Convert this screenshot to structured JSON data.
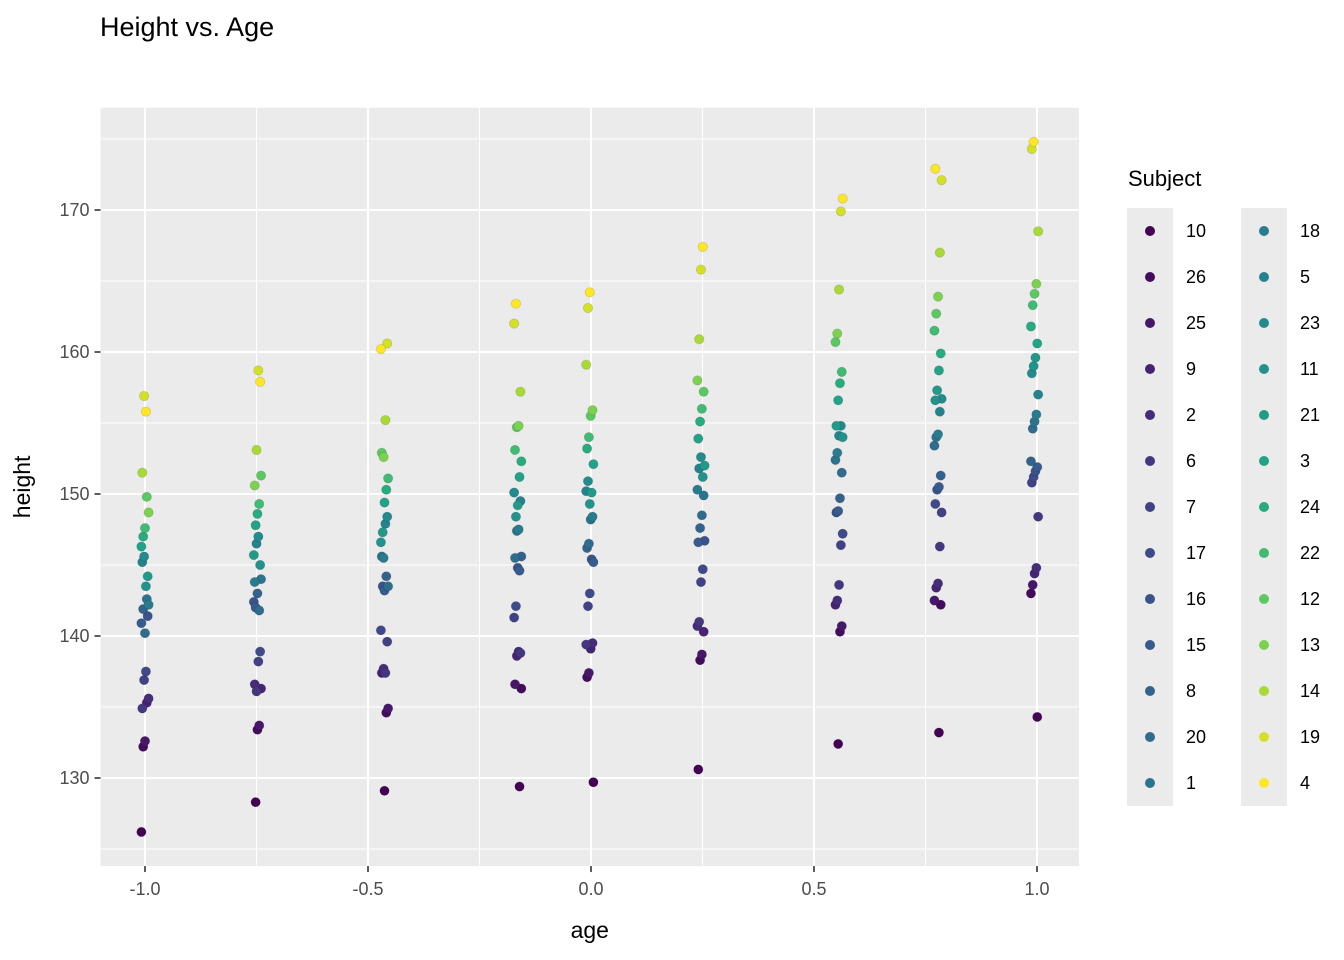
{
  "chart_data": {
    "type": "scatter",
    "title": "Height vs. Age",
    "xlabel": "age",
    "ylabel": "height",
    "xlim": [
      -1.0997,
      1.0942
    ],
    "ylim": [
      123.8,
      177.2
    ],
    "grid": "on",
    "panel_bg": "#EBEBEB",
    "grid_color": "#FFFFFF",
    "tick_label_color": "#4D4D4D",
    "tick_mark_color": "#333333",
    "xticks": {
      "values": [
        -1.0,
        -0.5,
        0.0,
        0.5,
        1.0
      ],
      "labels": [
        "-1.0",
        "-0.5",
        "0.0",
        "0.5",
        "1.0"
      ]
    },
    "yticks": {
      "values": [
        130,
        140,
        150,
        160,
        170
      ],
      "labels": [
        "130",
        "140",
        "150",
        "160",
        "170"
      ]
    },
    "x_minor": [
      -0.75,
      -0.25,
      0.25,
      0.75
    ],
    "y_minor": [
      125,
      135,
      145,
      155,
      165,
      175
    ],
    "ages": [
      -1.0,
      -0.7479,
      -0.463,
      -0.1643,
      -0.0027,
      0.2466,
      0.5562,
      0.7781,
      0.9945
    ],
    "series": [
      {
        "subject": "10",
        "color": "#440154",
        "heights": [
          126.2,
          128.3,
          129.1,
          129.4,
          129.7,
          130.6,
          132.4,
          133.2,
          134.3
        ]
      },
      {
        "subject": "26",
        "color": "#450C5E",
        "heights": [
          132.2,
          133.4,
          134.6,
          136.3,
          137.1,
          138.3,
          140.3,
          142.2,
          143.0
        ]
      },
      {
        "subject": "25",
        "color": "#471769",
        "heights": [
          132.6,
          133.7,
          134.9,
          136.6,
          137.4,
          138.7,
          140.7,
          142.5,
          143.6
        ]
      },
      {
        "subject": "9",
        "color": "#482373",
        "heights": [
          135.3,
          136.3,
          137.4,
          138.6,
          139.1,
          140.3,
          142.2,
          143.4,
          144.4
        ]
      },
      {
        "subject": "2",
        "color": "#462D7A",
        "heights": [
          135.6,
          136.6,
          137.7,
          138.9,
          139.5,
          140.7,
          142.5,
          143.7,
          144.8
        ]
      },
      {
        "subject": "6",
        "color": "#443780",
        "heights": [
          134.9,
          136.1,
          137.4,
          138.8,
          139.4,
          141.0,
          143.6,
          146.3,
          148.4
        ]
      },
      {
        "subject": "7",
        "color": "#414186",
        "heights": [
          136.9,
          138.2,
          139.6,
          141.3,
          142.1,
          143.8,
          146.4,
          148.7,
          150.8
        ]
      },
      {
        "subject": "17",
        "color": "#3E4A89",
        "heights": [
          137.5,
          138.9,
          140.4,
          142.1,
          143.0,
          144.7,
          147.2,
          149.3,
          151.2
        ]
      },
      {
        "subject": "16",
        "color": "#3A538A",
        "heights": [
          141.4,
          142.4,
          143.5,
          144.8,
          145.4,
          146.7,
          148.7,
          150.3,
          151.6
        ]
      },
      {
        "subject": "15",
        "color": "#365B8C",
        "heights": [
          140.9,
          142.0,
          143.2,
          144.6,
          145.2,
          146.6,
          148.8,
          150.5,
          151.9
        ]
      },
      {
        "subject": "8",
        "color": "#33638D",
        "heights": [
          141.9,
          143.0,
          144.2,
          145.6,
          146.2,
          147.6,
          149.7,
          151.3,
          152.3
        ]
      },
      {
        "subject": "20",
        "color": "#2F6C8E",
        "heights": [
          140.2,
          141.8,
          143.5,
          145.5,
          146.5,
          148.5,
          151.5,
          153.4,
          154.6
        ]
      },
      {
        "subject": "1",
        "color": "#2C748E",
        "heights": [
          142.6,
          144.0,
          145.6,
          147.4,
          148.2,
          149.9,
          152.4,
          154.0,
          155.1
        ]
      },
      {
        "subject": "18",
        "color": "#287C8E",
        "heights": [
          142.2,
          143.8,
          145.5,
          147.5,
          148.4,
          150.3,
          152.9,
          154.2,
          155.6
        ]
      },
      {
        "subject": "5",
        "color": "#25838D",
        "heights": [
          145.2,
          146.5,
          147.9,
          149.5,
          150.2,
          151.8,
          154.1,
          155.8,
          157.0
        ]
      },
      {
        "subject": "23",
        "color": "#238B8D",
        "heights": [
          145.6,
          147.0,
          148.4,
          150.1,
          150.9,
          152.6,
          154.8,
          156.7,
          158.5
        ]
      },
      {
        "subject": "11",
        "color": "#21938C",
        "heights": [
          143.5,
          145.0,
          146.6,
          148.4,
          149.3,
          151.2,
          154.0,
          156.6,
          159.0
        ]
      },
      {
        "subject": "21",
        "color": "#219A89",
        "heights": [
          144.2,
          145.7,
          147.3,
          149.2,
          150.1,
          152.0,
          154.8,
          157.3,
          159.6
        ]
      },
      {
        "subject": "3",
        "color": "#22A286",
        "heights": [
          146.3,
          147.8,
          149.4,
          151.2,
          152.1,
          153.9,
          156.6,
          158.7,
          160.6
        ]
      },
      {
        "subject": "24",
        "color": "#27AB81",
        "heights": [
          147.0,
          148.6,
          150.3,
          152.3,
          153.2,
          155.1,
          157.8,
          159.9,
          161.8
        ]
      },
      {
        "subject": "22",
        "color": "#40BB73",
        "heights": [
          147.6,
          149.3,
          151.1,
          153.1,
          154.0,
          156.0,
          158.6,
          161.5,
          163.3
        ]
      },
      {
        "subject": "12",
        "color": "#5CC862",
        "heights": [
          149.8,
          151.3,
          152.9,
          154.7,
          155.5,
          157.2,
          160.7,
          162.7,
          164.1
        ]
      },
      {
        "subject": "13",
        "color": "#7CD250",
        "heights": [
          148.7,
          150.6,
          152.6,
          154.8,
          155.9,
          158.0,
          161.3,
          163.9,
          164.8
        ]
      },
      {
        "subject": "14",
        "color": "#A7DA34",
        "heights": [
          151.5,
          153.1,
          155.2,
          157.2,
          159.1,
          160.9,
          164.4,
          167.0,
          168.5
        ]
      },
      {
        "subject": "19",
        "color": "#D2E126",
        "heights": [
          156.9,
          158.7,
          160.6,
          162.0,
          163.1,
          165.8,
          169.9,
          172.1,
          174.3
        ]
      },
      {
        "subject": "4",
        "color": "#FDE725",
        "heights": [
          155.8,
          157.9,
          160.2,
          163.4,
          164.2,
          167.4,
          170.8,
          172.9,
          174.8
        ]
      }
    ]
  },
  "legend": {
    "title": "Subject",
    "columns": [
      [
        "10",
        "26",
        "25",
        "9",
        "2",
        "6",
        "7",
        "17",
        "16",
        "15",
        "8",
        "20",
        "1"
      ],
      [
        "18",
        "5",
        "23",
        "11",
        "21",
        "3",
        "24",
        "22",
        "12",
        "13",
        "14",
        "19",
        "4"
      ]
    ]
  }
}
